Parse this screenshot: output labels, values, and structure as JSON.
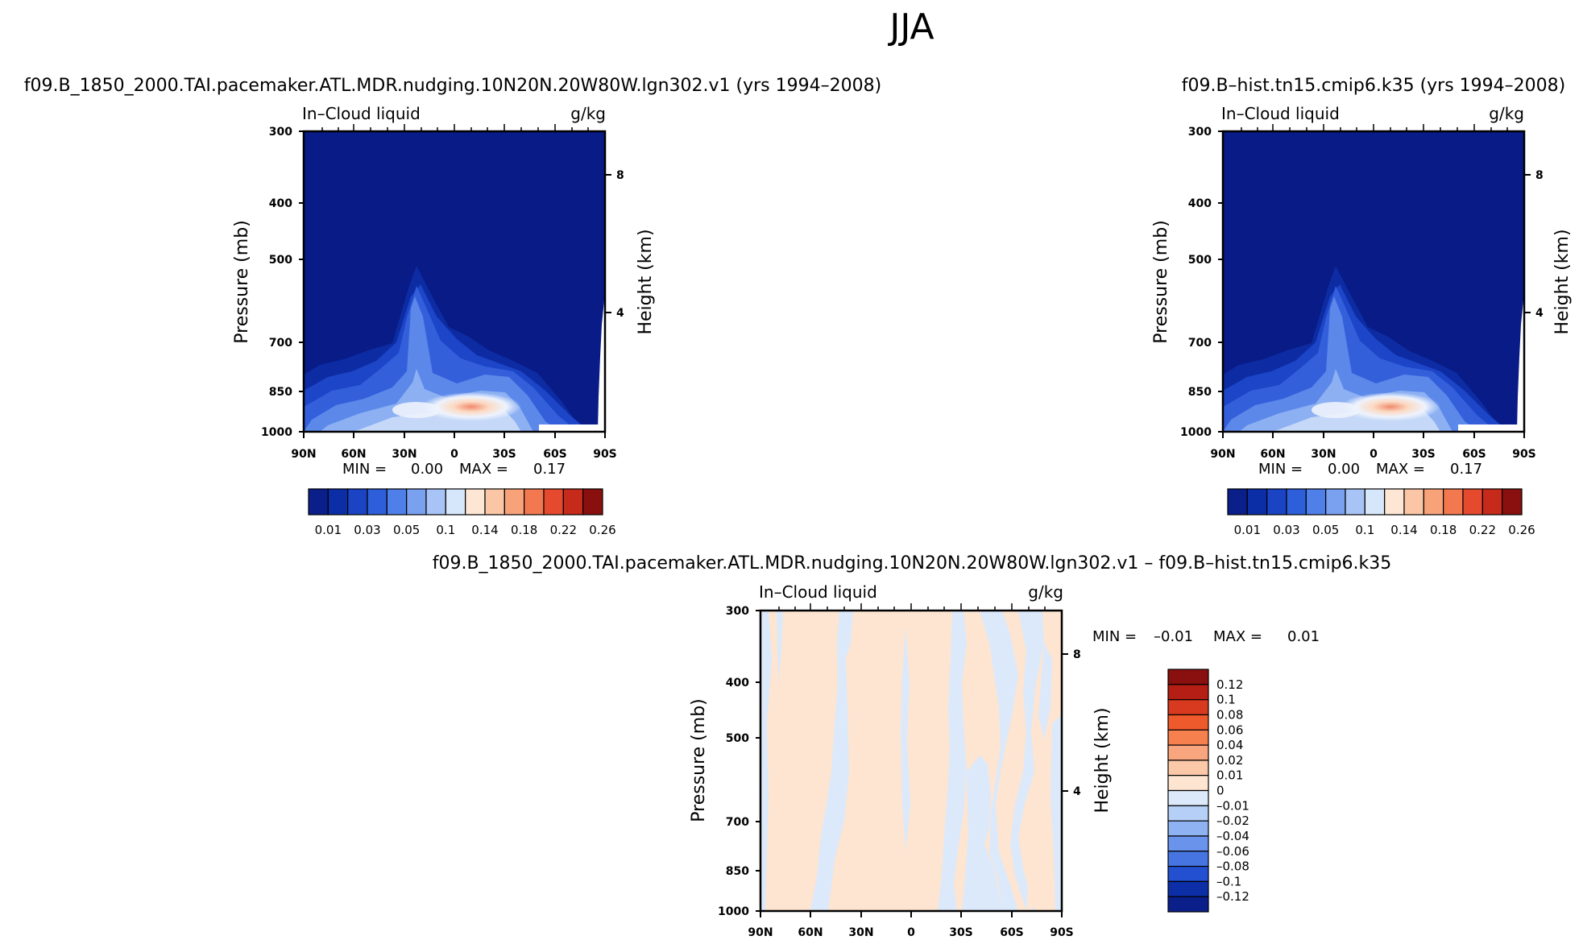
{
  "page_title": "JJA",
  "chart_data": [
    {
      "type": "heatmap",
      "title": "f09.B_1850_2000.TAI.pacemaker.ATL.MDR.nudging.10N20N.20W80W.lgn302.v1 (yrs 1994–2008)",
      "variable_label": "In–Cloud liquid",
      "units_label": "g/kg",
      "xlabel": "",
      "ylabel": "Pressure (mb)",
      "y2label": "Height (km)",
      "xticks": [
        "90N",
        "60N",
        "30N",
        "0",
        "30S",
        "60S",
        "90S"
      ],
      "yticks": [
        "300",
        "400",
        "500",
        "700",
        "850",
        "1000"
      ],
      "y2ticks": [
        "8",
        "4"
      ],
      "min_label": "MIN =",
      "min_value": "0.00",
      "max_label": "MAX =",
      "max_value": "0.17",
      "colorbar": {
        "orientation": "horizontal",
        "labels": [
          "0.01",
          "0.03",
          "0.05",
          "0.1",
          "0.14",
          "0.18",
          "0.22",
          "0.26"
        ],
        "colors": [
          "#0a1f8a",
          "#0b2ea6",
          "#1a44c4",
          "#2e5fdb",
          "#4f7fe8",
          "#7aa0f0",
          "#a8c3f5",
          "#d6e6fb",
          "#fde6d4",
          "#fbc6a5",
          "#f8a27a",
          "#f27850",
          "#e54a2e",
          "#c62a1a",
          "#8a0f0f"
        ]
      }
    },
    {
      "type": "heatmap",
      "title": "f09.B–hist.tn15.cmip6.k35 (yrs 1994–2008)",
      "variable_label": "In–Cloud liquid",
      "units_label": "g/kg",
      "xlabel": "",
      "ylabel": "Pressure (mb)",
      "y2label": "Height (km)",
      "xticks": [
        "90N",
        "60N",
        "30N",
        "0",
        "30S",
        "60S",
        "90S"
      ],
      "yticks": [
        "300",
        "400",
        "500",
        "700",
        "850",
        "1000"
      ],
      "y2ticks": [
        "8",
        "4"
      ],
      "min_label": "MIN =",
      "min_value": "0.00",
      "max_label": "MAX =",
      "max_value": "0.17",
      "colorbar": {
        "orientation": "horizontal",
        "labels": [
          "0.01",
          "0.03",
          "0.05",
          "0.1",
          "0.14",
          "0.18",
          "0.22",
          "0.26"
        ],
        "colors": [
          "#0a1f8a",
          "#0b2ea6",
          "#1a44c4",
          "#2e5fdb",
          "#4f7fe8",
          "#7aa0f0",
          "#a8c3f5",
          "#d6e6fb",
          "#fde6d4",
          "#fbc6a5",
          "#f8a27a",
          "#f27850",
          "#e54a2e",
          "#c62a1a",
          "#8a0f0f"
        ]
      }
    },
    {
      "type": "heatmap",
      "title": "f09.B_1850_2000.TAI.pacemaker.ATL.MDR.nudging.10N20N.20W80W.lgn302.v1 – f09.B–hist.tn15.cmip6.k35",
      "variable_label": "In–Cloud liquid",
      "units_label": "g/kg",
      "xlabel": "",
      "ylabel": "Pressure (mb)",
      "y2label": "Height (km)",
      "xticks": [
        "90N",
        "60N",
        "30N",
        "0",
        "30S",
        "60S",
        "90S"
      ],
      "yticks": [
        "300",
        "400",
        "500",
        "700",
        "850",
        "1000"
      ],
      "y2ticks": [
        "8",
        "4"
      ],
      "min_label": "MIN =",
      "min_value": "–0.01",
      "max_label": "MAX =",
      "max_value": "0.01",
      "colorbar": {
        "orientation": "vertical",
        "labels": [
          "0.12",
          "0.1",
          "0.08",
          "0.06",
          "0.04",
          "0.02",
          "0.01",
          "0",
          "–0.01",
          "–0.02",
          "–0.04",
          "–0.06",
          "–0.08",
          "–0.1",
          "–0.12"
        ],
        "colors": [
          "#8a0f0f",
          "#b51e14",
          "#d83a1f",
          "#ef5a2c",
          "#f7804f",
          "#f9a67e",
          "#fbc8a8",
          "#fde5d2",
          "#dbe9fb",
          "#b5cff7",
          "#8fb3f2",
          "#6a94ec",
          "#4675e2",
          "#2350d0",
          "#0c2fa8",
          "#0a1f8a"
        ]
      }
    }
  ]
}
